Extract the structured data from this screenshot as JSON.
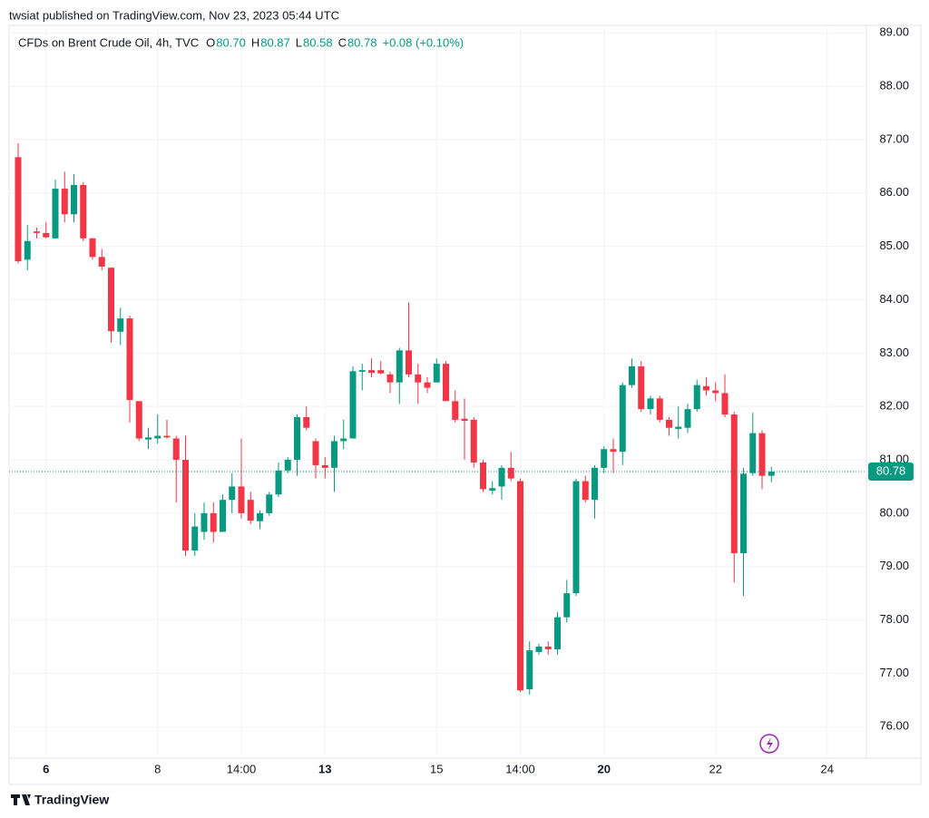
{
  "header": {
    "published": "twsiat published on TradingView.com, Nov 23, 2023 05:44 UTC",
    "footer": "TradingView"
  },
  "chart_data": {
    "type": "candlestick",
    "title": "CFDs on Brent Crude Oil, 4h, TVC",
    "ohlc_legend": [
      {
        "key": "O",
        "value": "80.70"
      },
      {
        "key": "H",
        "value": "80.87"
      },
      {
        "key": "L",
        "value": "80.58"
      },
      {
        "key": "C",
        "value": "80.78"
      }
    ],
    "change": "+0.08 (+0.10%)",
    "up_color": "#089981",
    "down_color": "#f23645",
    "categories": [
      null,
      null,
      null,
      "6",
      null,
      null,
      null,
      null,
      null,
      null,
      null,
      null,
      null,
      null,
      null,
      "8",
      null,
      null,
      null,
      null,
      null,
      null,
      null,
      null,
      "14:00",
      null,
      null,
      null,
      null,
      null,
      null,
      null,
      null,
      "13",
      null,
      null,
      null,
      null,
      null,
      null,
      null,
      null,
      null,
      null,
      null,
      "15",
      null,
      null,
      null,
      null,
      null,
      null,
      null,
      null,
      "14:00",
      null,
      null,
      null,
      null,
      null,
      null,
      null,
      null,
      "20",
      null,
      null,
      null,
      null,
      null,
      null,
      null,
      null,
      null,
      null,
      null,
      "22",
      null,
      null,
      null,
      null,
      null,
      null,
      null,
      null,
      null,
      null,
      null,
      "24"
    ],
    "open": [
      86.67,
      84.75,
      85.28,
      85.25,
      85.15,
      86.08,
      85.6,
      86.15,
      85.15,
      84.8,
      84.6,
      83.4,
      83.65,
      82.1,
      81.38,
      81.4,
      81.45,
      81.4,
      81.0,
      79.3,
      79.65,
      80.0,
      79.65,
      80.25,
      80.5,
      80.25,
      79.85,
      80.0,
      80.35,
      80.8,
      81.0,
      81.8,
      81.35,
      80.9,
      80.85,
      81.35,
      81.4,
      82.65,
      82.68,
      82.68,
      82.6,
      82.45,
      83.05,
      82.6,
      82.45,
      82.45,
      82.8,
      82.1,
      81.77,
      81.75,
      80.95,
      80.42,
      80.5,
      80.85,
      80.6,
      76.7,
      77.4,
      77.5,
      77.45,
      78.05,
      78.5,
      80.6,
      80.25,
      80.85,
      81.2,
      81.15,
      82.4,
      82.75,
      81.95,
      82.15,
      81.75,
      81.58,
      81.6,
      81.95,
      82.38,
      82.3,
      82.25,
      81.85,
      79.25,
      80.75,
      81.5,
      80.7,
      null,
      null,
      null,
      null,
      null,
      null
    ],
    "high": [
      86.93,
      85.4,
      85.35,
      85.45,
      86.25,
      86.4,
      86.35,
      86.2,
      85.15,
      84.95,
      84.6,
      83.85,
      83.7,
      82.05,
      81.6,
      81.85,
      81.75,
      81.45,
      81.45,
      80.0,
      80.2,
      80.2,
      80.35,
      80.75,
      81.4,
      80.4,
      80.05,
      80.4,
      80.95,
      81.05,
      81.85,
      82.0,
      81.4,
      81.05,
      81.45,
      81.75,
      82.75,
      82.8,
      82.9,
      82.85,
      82.65,
      83.1,
      83.95,
      82.8,
      82.55,
      82.9,
      82.85,
      82.3,
      82.15,
      81.8,
      81.0,
      80.6,
      80.9,
      81.15,
      80.65,
      77.6,
      77.55,
      77.6,
      78.15,
      78.75,
      80.65,
      80.7,
      80.9,
      81.25,
      81.4,
      82.45,
      82.9,
      82.85,
      82.2,
      82.2,
      81.8,
      82.0,
      82.05,
      82.5,
      82.55,
      82.45,
      82.6,
      81.9,
      80.85,
      81.88,
      81.55,
      80.87,
      null,
      null,
      null,
      null,
      null,
      null
    ],
    "low": [
      84.68,
      84.55,
      85.15,
      85.15,
      85.15,
      85.45,
      85.45,
      85.1,
      84.75,
      84.55,
      83.2,
      83.15,
      81.7,
      81.35,
      81.2,
      81.3,
      81.4,
      80.2,
      79.2,
      79.2,
      79.5,
      79.45,
      79.65,
      80.0,
      79.9,
      79.8,
      79.7,
      79.95,
      80.3,
      80.75,
      80.7,
      81.55,
      80.65,
      80.65,
      80.4,
      81.2,
      81.4,
      82.3,
      82.55,
      82.6,
      82.25,
      82.05,
      82.55,
      82.05,
      82.25,
      82.45,
      82.1,
      81.7,
      81.0,
      80.85,
      80.4,
      80.35,
      80.25,
      80.6,
      76.65,
      76.6,
      77.35,
      77.35,
      77.35,
      77.95,
      78.45,
      80.2,
      79.9,
      80.75,
      80.75,
      80.9,
      82.35,
      81.9,
      81.85,
      81.7,
      81.45,
      81.4,
      81.5,
      81.9,
      82.2,
      82.1,
      81.8,
      78.7,
      78.45,
      80.7,
      80.45,
      80.58,
      null,
      null,
      null,
      null,
      null,
      null
    ],
    "close": [
      84.72,
      85.1,
      85.25,
      85.17,
      86.08,
      85.6,
      86.15,
      85.15,
      84.8,
      84.62,
      83.41,
      83.65,
      82.12,
      81.4,
      81.42,
      81.45,
      81.42,
      81.0,
      79.3,
      79.75,
      80.0,
      79.65,
      80.25,
      80.5,
      80.0,
      79.86,
      80.0,
      80.35,
      80.8,
      81.0,
      81.8,
      81.6,
      80.9,
      80.85,
      81.35,
      81.4,
      82.66,
      82.68,
      82.63,
      82.62,
      82.45,
      83.05,
      82.6,
      82.45,
      82.35,
      82.8,
      82.1,
      81.75,
      81.73,
      80.95,
      80.45,
      80.47,
      80.85,
      80.65,
      76.68,
      77.43,
      77.5,
      77.45,
      78.05,
      78.5,
      80.6,
      80.25,
      80.85,
      81.2,
      81.15,
      82.4,
      82.75,
      81.95,
      82.15,
      81.75,
      81.6,
      81.62,
      81.95,
      82.4,
      82.3,
      82.25,
      81.85,
      79.25,
      80.74,
      81.5,
      80.7,
      80.78,
      null,
      null,
      null,
      null,
      null,
      null
    ],
    "last_price": {
      "value": 80.78,
      "label": "80.78"
    },
    "ylim": [
      75.41,
      89.14
    ],
    "yticks": [
      {
        "value": 76,
        "label": "76.00"
      },
      {
        "value": 77,
        "label": "77.00"
      },
      {
        "value": 78,
        "label": "78.00"
      },
      {
        "value": 79,
        "label": "79.00"
      },
      {
        "value": 80,
        "label": "80.00"
      },
      {
        "value": 81,
        "label": "81.00"
      },
      {
        "value": 82,
        "label": "82.00"
      },
      {
        "value": 83,
        "label": "83.00"
      },
      {
        "value": 84,
        "label": "84.00"
      },
      {
        "value": 85,
        "label": "85.00"
      },
      {
        "value": 86,
        "label": "86.00"
      },
      {
        "value": 87,
        "label": "87.00"
      },
      {
        "value": 88,
        "label": "88.00"
      },
      {
        "value": 89,
        "label": "89.00"
      }
    ],
    "grid": true
  }
}
